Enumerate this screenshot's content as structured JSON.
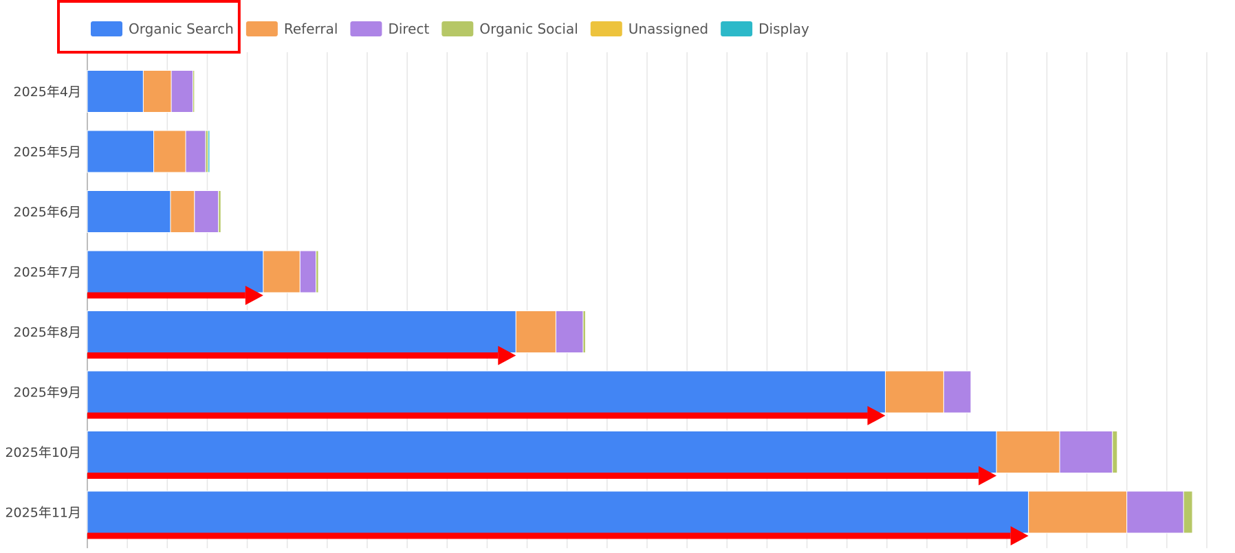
{
  "chart_data": {
    "type": "bar",
    "orientation": "horizontal",
    "stacked": true,
    "title": "",
    "xlabel": "",
    "ylabel": "",
    "categories": [
      "2025年4月",
      "2025年5月",
      "2025年6月",
      "2025年7月",
      "2025年8月",
      "2025年9月",
      "2025年10月",
      "2025年11月"
    ],
    "series": [
      {
        "name": "Organic Search",
        "color": "#4285F4",
        "values": [
          70,
          83,
          104,
          220,
          536,
          998,
          1137,
          1177
        ]
      },
      {
        "name": "Referral",
        "color": "#F5A054",
        "values": [
          35,
          40,
          30,
          46,
          50,
          73,
          79,
          123
        ]
      },
      {
        "name": "Direct",
        "color": "#AD84E6",
        "values": [
          27,
          25,
          30,
          20,
          34,
          34,
          66,
          71
        ]
      },
      {
        "name": "Organic Social",
        "color": "#B6C766",
        "values": [
          2,
          3,
          3,
          3,
          3,
          0,
          6,
          11
        ]
      },
      {
        "name": "Unassigned",
        "color": "#EDC33D",
        "values": [
          0,
          0,
          0,
          0,
          0,
          0,
          0,
          0
        ]
      },
      {
        "name": "Display",
        "color": "#2CB9C9",
        "values": [
          0,
          2,
          0,
          0,
          0,
          0,
          0,
          0
        ]
      }
    ],
    "xlim": [
      0,
      1400
    ],
    "grid": true,
    "legend_position": "top-left",
    "annotations": {
      "highlight_box_target": "Organic Search",
      "arrow_color": "#FF0000",
      "arrows_on_categories": [
        "2025年7月",
        "2025年8月",
        "2025年9月",
        "2025年10月",
        "2025年11月"
      ]
    }
  }
}
